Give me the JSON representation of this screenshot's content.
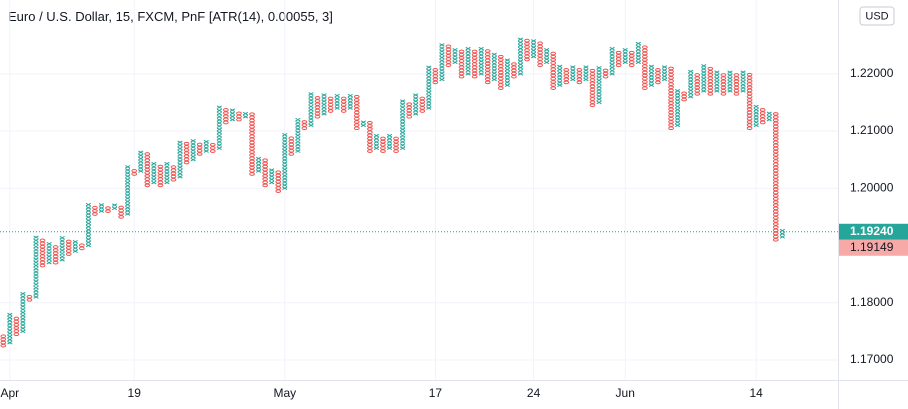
{
  "chart_data": {
    "type": "pnf",
    "title": "Euro / U.S. Dollar, 15, FXCM, PnF [ATR(14), 0.00055, 3]",
    "currency": "USD",
    "box_size": 0.00055,
    "up_color": "#26a69a",
    "down_color": "#ef5350",
    "grid": true,
    "ylim": [
      1.1665,
      1.2329
    ],
    "yticks": [
      {
        "value": 1.17,
        "label": "1.17000"
      },
      {
        "value": 1.18,
        "label": "1.18000"
      },
      {
        "value": 1.2,
        "label": "1.20000"
      },
      {
        "value": 1.21,
        "label": "1.21000"
      },
      {
        "value": 1.22,
        "label": "1.22000"
      }
    ],
    "xlim": [
      0,
      128
    ],
    "xticks": [
      {
        "value": 1,
        "label": "Apr"
      },
      {
        "value": 20,
        "label": "19"
      },
      {
        "value": 43,
        "label": "May"
      },
      {
        "value": 66,
        "label": "17"
      },
      {
        "value": 81,
        "label": "24"
      },
      {
        "value": 95,
        "label": "Jun"
      },
      {
        "value": 115,
        "label": "14"
      }
    ],
    "last_price": {
      "value": 1.1924,
      "label": "1.19240"
    },
    "prev_price": {
      "value": 1.19149,
      "label": "1.19149"
    },
    "kinds": [
      "O",
      "X",
      "O",
      "X",
      "O",
      "X",
      "O",
      "X",
      "O",
      "X",
      "O",
      "X",
      "O",
      "X",
      "O",
      "X",
      "O",
      "X",
      "O",
      "X",
      "O",
      "X",
      "O",
      "X",
      "O",
      "X",
      "O",
      "X",
      "O",
      "X",
      "O",
      "X",
      "O",
      "X",
      "O",
      "X",
      "O",
      "X",
      "O",
      "X",
      "O",
      "X",
      "O",
      "X",
      "O",
      "X",
      "O",
      "X",
      "O",
      "X",
      "O",
      "X",
      "O",
      "X",
      "O",
      "X",
      "O",
      "X",
      "O",
      "X",
      "O",
      "X",
      "O",
      "X",
      "O",
      "X",
      "O",
      "X",
      "O",
      "X",
      "O",
      "X",
      "O",
      "X",
      "O",
      "X",
      "O",
      "X",
      "O",
      "X",
      "O",
      "X",
      "O",
      "X",
      "O",
      "X",
      "O",
      "X",
      "O",
      "X",
      "O",
      "X",
      "O",
      "X",
      "O",
      "X",
      "O",
      "X",
      "O",
      "X",
      "O",
      "X",
      "O",
      "X",
      "O",
      "X",
      "O",
      "X",
      "O",
      "X",
      "O",
      "X",
      "O",
      "X",
      "O",
      "X",
      "O",
      "X",
      "O",
      "X"
    ],
    "lows": [
      1.1725,
      1.173,
      1.1745,
      1.175,
      1.1805,
      1.181,
      1.1865,
      1.187,
      1.187,
      1.1875,
      1.1885,
      1.189,
      1.1895,
      1.19,
      1.1955,
      1.196,
      1.196,
      1.1965,
      1.195,
      1.1955,
      1.2025,
      1.203,
      1.2005,
      1.201,
      1.2005,
      1.201,
      1.2015,
      1.202,
      1.2045,
      1.205,
      1.206,
      1.2065,
      1.2065,
      1.207,
      1.2115,
      1.212,
      1.212,
      1.2125,
      1.2025,
      1.203,
      1.2005,
      1.201,
      1.1995,
      1.2,
      1.206,
      1.2065,
      1.2105,
      1.211,
      1.2125,
      1.213,
      1.2135,
      1.214,
      1.2135,
      1.214,
      1.2105,
      1.211,
      1.2065,
      1.207,
      1.2065,
      1.207,
      1.2065,
      1.207,
      1.2125,
      1.213,
      1.2135,
      1.214,
      1.2185,
      1.219,
      1.2215,
      1.222,
      1.2195,
      1.22,
      1.2195,
      1.22,
      1.2185,
      1.219,
      1.2175,
      1.218,
      1.2195,
      1.22,
      1.2225,
      1.223,
      1.2215,
      1.222,
      1.2175,
      1.218,
      1.2185,
      1.219,
      1.2185,
      1.219,
      1.2145,
      1.215,
      1.2195,
      1.22,
      1.2215,
      1.222,
      1.2215,
      1.222,
      1.2175,
      1.218,
      1.2185,
      1.219,
      1.2105,
      1.211,
      1.2155,
      1.216,
      1.2165,
      1.217,
      1.2165,
      1.217,
      1.2165,
      1.217,
      1.2165,
      1.217,
      1.2105,
      1.211,
      1.2115,
      1.212,
      1.191,
      1.1915
    ],
    "highs": [
      1.1745,
      1.178,
      1.1775,
      1.182,
      1.1815,
      1.1915,
      1.191,
      1.1905,
      1.19,
      1.1915,
      1.191,
      1.191,
      1.1905,
      1.1975,
      1.197,
      1.1975,
      1.197,
      1.1975,
      1.197,
      1.204,
      1.2035,
      1.2065,
      1.206,
      1.2045,
      1.204,
      1.2045,
      1.204,
      1.2085,
      1.208,
      1.2085,
      1.208,
      1.2085,
      1.208,
      1.2145,
      1.214,
      1.214,
      1.2135,
      1.2135,
      1.213,
      1.2055,
      1.205,
      1.2035,
      1.203,
      1.2095,
      1.209,
      1.2125,
      1.212,
      1.2165,
      1.216,
      1.2165,
      1.216,
      1.2165,
      1.216,
      1.2165,
      1.216,
      1.212,
      1.2115,
      1.2095,
      1.209,
      1.2095,
      1.209,
      1.2155,
      1.215,
      1.2165,
      1.216,
      1.2215,
      1.221,
      1.2255,
      1.225,
      1.2245,
      1.224,
      1.2245,
      1.224,
      1.2245,
      1.224,
      1.2235,
      1.223,
      1.2225,
      1.222,
      1.2265,
      1.226,
      1.226,
      1.2255,
      1.2245,
      1.224,
      1.2215,
      1.221,
      1.2215,
      1.221,
      1.2215,
      1.221,
      1.2215,
      1.221,
      1.2245,
      1.224,
      1.2245,
      1.224,
      1.2255,
      1.225,
      1.2215,
      1.221,
      1.2215,
      1.221,
      1.2175,
      1.217,
      1.2205,
      1.22,
      1.2215,
      1.221,
      1.2205,
      1.22,
      1.2205,
      1.22,
      1.2205,
      1.22,
      1.2145,
      1.214,
      1.2135,
      1.213,
      1.193
    ]
  }
}
